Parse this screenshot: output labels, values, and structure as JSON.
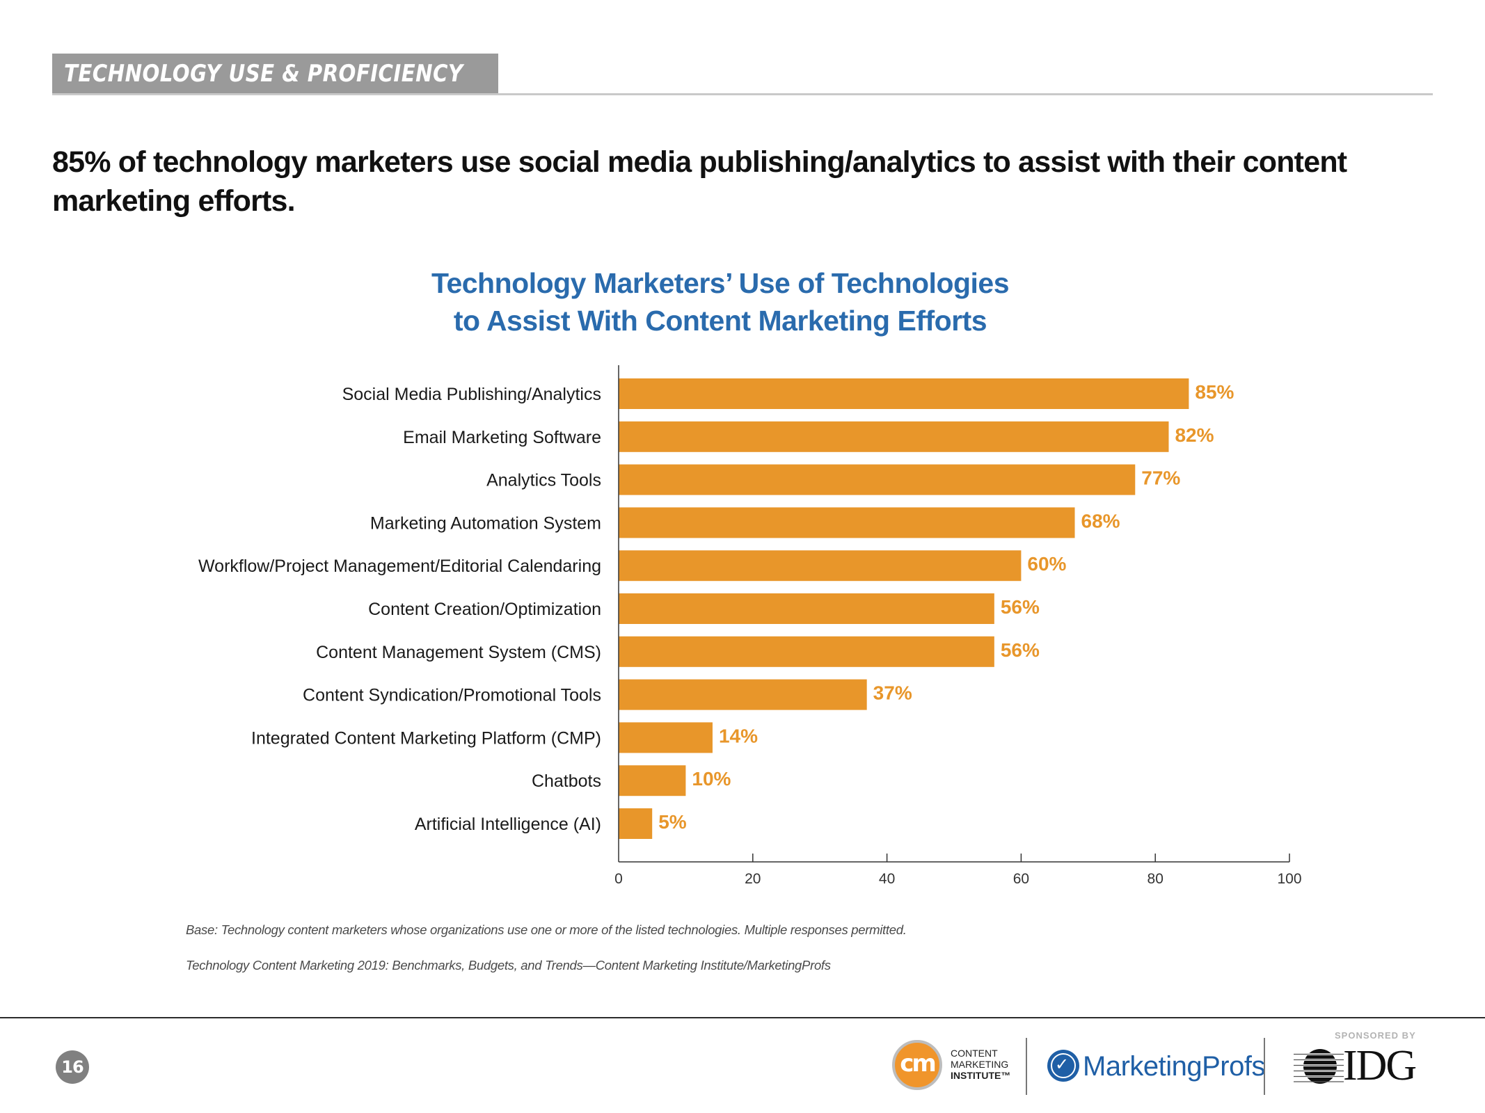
{
  "section": {
    "label": "TECHNOLOGY USE & PROFICIENCY"
  },
  "headline": "85% of technology marketers use social media publishing/analytics to assist with their content marketing efforts.",
  "colors": {
    "bar": "#e8962a",
    "value_label": "#e8962a",
    "title": "#2a6bad",
    "section_band": "#9a9a9a"
  },
  "chart_data": {
    "type": "bar",
    "orientation": "horizontal",
    "title": "Technology Marketers’ Use of Technologies to Assist With Content Marketing Efforts",
    "title_lines": [
      "Technology Marketers’ Use of Technologies",
      "to Assist With Content Marketing Efforts"
    ],
    "categories": [
      "Social Media Publishing/Analytics",
      "Email Marketing Software",
      "Analytics Tools",
      "Marketing Automation System",
      "Workflow/Project Management/Editorial Calendaring",
      "Content Creation/Optimization",
      "Content Management System (CMS)",
      "Content Syndication/Promotional Tools",
      "Integrated Content Marketing Platform (CMP)",
      "Chatbots",
      "Artificial Intelligence (AI)"
    ],
    "values": [
      85,
      82,
      77,
      68,
      60,
      56,
      56,
      37,
      14,
      10,
      5
    ],
    "value_labels": [
      "85%",
      "82%",
      "77%",
      "68%",
      "60%",
      "56%",
      "56%",
      "37%",
      "14%",
      "10%",
      "5%"
    ],
    "xlabel": "",
    "ylabel": "",
    "xlim": [
      0,
      100
    ],
    "xticks": [
      0,
      20,
      40,
      60,
      80,
      100
    ],
    "xtick_labels": [
      "0",
      "20",
      "40",
      "60",
      "80",
      "100"
    ],
    "grid": false,
    "legend": null
  },
  "footnotes": {
    "base": "Base: Technology content marketers whose organizations use one or more of the listed technologies. Multiple responses permitted.",
    "source": "Technology Content Marketing 2019: Benchmarks, Budgets, and Trends—Content Marketing Institute/MarketingProfs"
  },
  "footer": {
    "page_number": "16",
    "cmi": {
      "mark": "cm",
      "lines": [
        "CONTENT",
        "MARKETING",
        "INSTITUTE™"
      ]
    },
    "marketingprofs": {
      "name": "MarketingProfs",
      "icon": "bird-icon"
    },
    "sponsored_by": "SPONSORED BY",
    "idg": {
      "name": "IDG",
      "icon": "globe-lines-icon"
    }
  }
}
